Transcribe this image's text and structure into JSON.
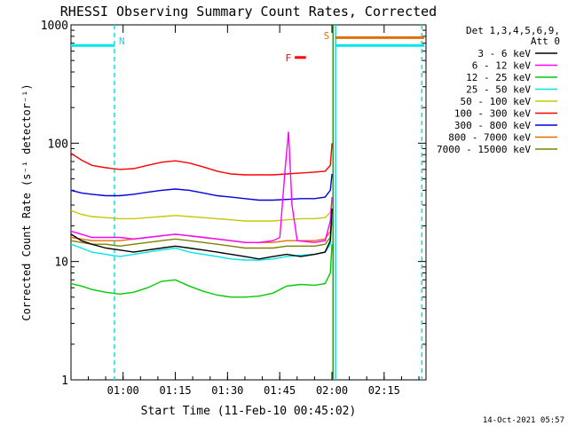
{
  "colors": {
    "background": "#ffffff",
    "axis": "#000000",
    "flag_line": "#00e5e5",
    "saa_bar": "#00e5e5",
    "flare_marker": "#ff0000",
    "s_marker": "#e07000",
    "green_line": "#00b000"
  },
  "chart_data": {
    "type": "line",
    "title": "RHESSI Observing Summary Count Rates, Corrected",
    "ylabel": "Corrected Count Rate (s⁻¹ detector⁻¹)",
    "xlabel": "Start Time (11-Feb-10 00:45:02)",
    "timestamp": "14-Oct-2021 05:57",
    "x_unit": "minutes after 00:45:02",
    "xlim": [
      0,
      102
    ],
    "ylim": [
      1,
      1000
    ],
    "y_scale": "log",
    "x_ticks": [
      {
        "x": 14.97,
        "label": "01:00"
      },
      {
        "x": 29.97,
        "label": "01:15"
      },
      {
        "x": 44.97,
        "label": "01:30"
      },
      {
        "x": 59.97,
        "label": "01:45"
      },
      {
        "x": 74.97,
        "label": "02:00"
      },
      {
        "x": 89.97,
        "label": "02:15"
      }
    ],
    "y_ticks": [
      {
        "y": 1,
        "label": "1"
      },
      {
        "y": 10,
        "label": "10"
      },
      {
        "y": 100,
        "label": "100"
      },
      {
        "y": 1000,
        "label": "1000"
      }
    ],
    "legend": {
      "placement": "right",
      "header": [
        "Det 1,3,4,5,6,9,",
        "Att 0"
      ]
    },
    "series": [
      {
        "name": "3 - 6 keV",
        "color": "#000000",
        "x": [
          0,
          3,
          6,
          10,
          14,
          18,
          22,
          26,
          30,
          34,
          38,
          42,
          46,
          50,
          54,
          58,
          62,
          66,
          70,
          73,
          74.5,
          75
        ],
        "y": [
          17,
          15,
          14,
          13,
          12.5,
          12,
          12.5,
          13,
          13.5,
          13,
          12.5,
          12,
          11.5,
          11,
          10.5,
          11,
          11.5,
          11,
          11.5,
          12,
          15,
          28
        ]
      },
      {
        "name": "6 - 12 keV",
        "color": "#ff00ff",
        "x": [
          0,
          3,
          6,
          10,
          14,
          18,
          22,
          26,
          30,
          34,
          38,
          42,
          46,
          50,
          54,
          58,
          60,
          61.5,
          62.5,
          63.5,
          65,
          70,
          73,
          74.5,
          75
        ],
        "y": [
          18,
          17,
          16,
          16,
          16,
          15.5,
          16,
          16.5,
          17,
          16.5,
          16,
          15.5,
          15,
          14.5,
          14.5,
          15,
          16,
          60,
          125,
          30,
          15,
          14.5,
          15,
          22,
          35
        ]
      },
      {
        "name": "12 - 25 keV",
        "color": "#00cc00",
        "x": [
          0,
          3,
          6,
          10,
          14,
          18,
          22,
          26,
          30,
          34,
          38,
          42,
          46,
          50,
          54,
          58,
          62,
          66,
          70,
          73,
          74.5,
          75
        ],
        "y": [
          6.5,
          6.2,
          5.8,
          5.5,
          5.3,
          5.5,
          6,
          6.8,
          7,
          6.2,
          5.6,
          5.2,
          5,
          5,
          5.1,
          5.4,
          6.2,
          6.4,
          6.3,
          6.5,
          8,
          14
        ]
      },
      {
        "name": "25 - 50 keV",
        "color": "#00e5e5",
        "x": [
          0,
          3,
          6,
          10,
          14,
          18,
          22,
          26,
          30,
          34,
          38,
          42,
          46,
          50,
          54,
          58,
          62,
          66,
          70,
          73,
          74.5,
          75
        ],
        "y": [
          14,
          13,
          12,
          11.5,
          11,
          11.5,
          12,
          12.5,
          13,
          12,
          11.5,
          11,
          10.5,
          10.3,
          10.3,
          10.5,
          11,
          11.3,
          11.5,
          12,
          14,
          24
        ]
      },
      {
        "name": "50 - 100 keV",
        "color": "#c8c800",
        "x": [
          0,
          3,
          6,
          10,
          14,
          18,
          22,
          26,
          30,
          34,
          38,
          42,
          46,
          50,
          54,
          58,
          62,
          66,
          70,
          73,
          74.5,
          75
        ],
        "y": [
          27,
          25,
          24,
          23.5,
          23,
          23,
          23.5,
          24,
          24.5,
          24,
          23.5,
          23,
          22.5,
          22,
          22,
          22,
          22.5,
          23,
          23,
          23.5,
          26,
          32
        ]
      },
      {
        "name": "100 - 300 keV",
        "color": "#ff0000",
        "x": [
          0,
          3,
          6,
          10,
          14,
          18,
          22,
          26,
          30,
          34,
          38,
          42,
          46,
          50,
          54,
          58,
          62,
          66,
          70,
          73,
          74.5,
          75
        ],
        "y": [
          82,
          72,
          65,
          62,
          60,
          61,
          65,
          69,
          71,
          68,
          63,
          58,
          55,
          54,
          54,
          54,
          55,
          56,
          57,
          58,
          65,
          100
        ]
      },
      {
        "name": "300 - 800 keV",
        "color": "#0000dd",
        "x": [
          0,
          3,
          6,
          10,
          14,
          18,
          22,
          26,
          30,
          34,
          38,
          42,
          46,
          50,
          54,
          58,
          62,
          66,
          70,
          73,
          74.5,
          75
        ],
        "y": [
          40,
          38,
          37,
          36,
          36,
          37,
          38.5,
          40,
          41,
          40,
          38,
          36,
          35,
          34,
          33,
          33,
          33.5,
          34,
          34,
          35,
          40,
          55
        ]
      },
      {
        "name": "800 - 7000 keV",
        "color": "#e07000",
        "x": [
          0,
          3,
          6,
          10,
          14,
          18,
          22,
          26,
          30,
          34,
          38,
          42,
          46,
          50,
          54,
          58,
          62,
          66,
          70,
          73,
          74.5,
          75
        ],
        "y": [
          16,
          15.5,
          15,
          15,
          15,
          15.5,
          16,
          16.5,
          17,
          16.5,
          16,
          15.5,
          15,
          14.5,
          14.5,
          14.5,
          15,
          15,
          15,
          15.5,
          18,
          24
        ]
      },
      {
        "name": "7000 - 15000 keV",
        "color": "#808000",
        "x": [
          0,
          3,
          6,
          10,
          14,
          18,
          22,
          26,
          30,
          34,
          38,
          42,
          46,
          50,
          54,
          58,
          62,
          66,
          70,
          73,
          74.5,
          75
        ],
        "y": [
          15,
          14.5,
          14,
          14,
          13.5,
          14,
          14.5,
          15,
          15.5,
          15,
          14.5,
          14,
          13.5,
          13,
          13,
          13,
          13.5,
          13.5,
          13.5,
          14,
          16,
          22
        ]
      }
    ],
    "flags": {
      "night_marker": {
        "label": "N",
        "x": 12.5
      },
      "saa_marker": {
        "label": "S",
        "x": 75.3
      },
      "flare_marker": {
        "label": "F",
        "x_start": 64.3,
        "x_end": 67.5,
        "y": 530
      },
      "vertical_lines": [
        {
          "x": 12.5,
          "style": "dashed",
          "color": "#00e5e5"
        },
        {
          "x": 75.3,
          "style": "solid",
          "color": "#00b000"
        },
        {
          "x": 76,
          "style": "solid",
          "color": "#00e5e5"
        },
        {
          "x": 100.8,
          "style": "dashed",
          "color": "#00e5e5"
        }
      ],
      "bars": [
        {
          "x_start": 0,
          "x_end": 12.5,
          "y": 670,
          "color": "#00e5e5"
        },
        {
          "x_start": 76,
          "x_end": 101.5,
          "y": 670,
          "color": "#00e5e5"
        },
        {
          "x_start": 76,
          "x_end": 101.5,
          "y": 780,
          "color": "#e07000"
        }
      ]
    }
  }
}
